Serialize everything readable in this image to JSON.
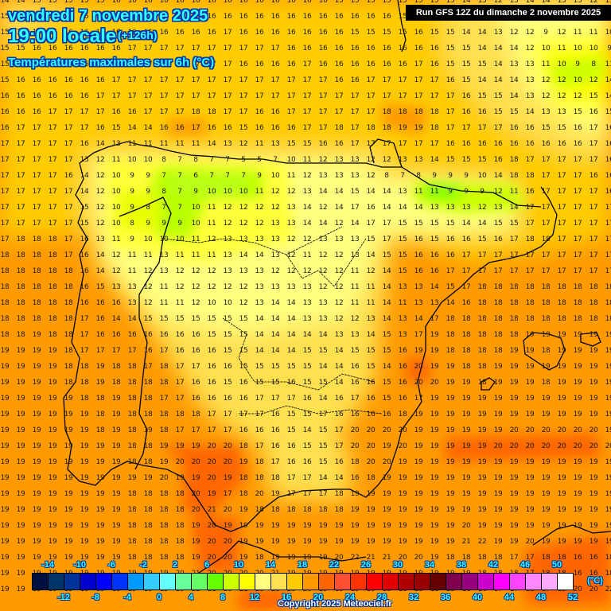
{
  "header": {
    "date": "vendredi 7 novembre 2025",
    "time": "19:00 locale",
    "lead": "(+126h)",
    "variable": "Températures maximales sur 6h (°C)"
  },
  "run_banner": "Run GFS 12Z du dimanche 2 novembre 2025",
  "copyright": "Copyright 2025 Meteociel.fr",
  "legend": {
    "unit": "(°C)",
    "top_labels": [
      "-14",
      "-10",
      "-6",
      "-2",
      "2",
      "6",
      "10",
      "14",
      "18",
      "22",
      "26",
      "30",
      "34",
      "38",
      "42",
      "46",
      "50"
    ],
    "bottom_labels": [
      "-12",
      "-8",
      "-4",
      "0",
      "4",
      "8",
      "12",
      "16",
      "20",
      "24",
      "28",
      "32",
      "36",
      "40",
      "44",
      "48",
      "52"
    ],
    "colors": [
      "#001040",
      "#003366",
      "#003399",
      "#0000cc",
      "#0000ff",
      "#0033ff",
      "#0099ff",
      "#33ccff",
      "#66ffff",
      "#66ff99",
      "#66ff66",
      "#66ff00",
      "#ccff00",
      "#ffff00",
      "#ffff80",
      "#ffe050",
      "#ffcc00",
      "#ff9900",
      "#ff6600",
      "#ff5033",
      "#ff3300",
      "#ff0000",
      "#e00000",
      "#b00000",
      "#990000",
      "#660000",
      "#800050",
      "#990080",
      "#cc00cc",
      "#ff00ff",
      "#ff44ff",
      "#ff88ff",
      "#ffaaff",
      "#ffffff"
    ]
  },
  "grid_values": [
    [
      14,
      14,
      15,
      15,
      15,
      15,
      15,
      16,
      16,
      16,
      16,
      16,
      16,
      16,
      16,
      16,
      16,
      16,
      16,
      16,
      16,
      15,
      15,
      15,
      15,
      15,
      15,
      15,
      15,
      14,
      13,
      12,
      13,
      14,
      14,
      13,
      13,
      12,
      11
    ],
    [
      15,
      15,
      15,
      15,
      15,
      15,
      16,
      16,
      16,
      16,
      16,
      16,
      16,
      16,
      16,
      16,
      16,
      16,
      16,
      16,
      16,
      16,
      16,
      16,
      16,
      15,
      16,
      15,
      14,
      14,
      12,
      13,
      12,
      12,
      10,
      12,
      12,
      11,
      11
    ],
    [
      15,
      15,
      15,
      15,
      16,
      16,
      16,
      16,
      16,
      16,
      16,
      16,
      16,
      16,
      17,
      16,
      16,
      16,
      16,
      16,
      16,
      16,
      15,
      15,
      15,
      15,
      16,
      15,
      15,
      14,
      14,
      13,
      12,
      12,
      9,
      12,
      11,
      11,
      10
    ],
    [
      15,
      15,
      16,
      16,
      16,
      16,
      16,
      16,
      17,
      17,
      17,
      17,
      17,
      17,
      17,
      17,
      17,
      17,
      16,
      16,
      16,
      16,
      16,
      16,
      16,
      16,
      16,
      16,
      15,
      15,
      14,
      14,
      14,
      12,
      10,
      11,
      10,
      10,
      9
    ],
    [
      15,
      16,
      16,
      16,
      16,
      16,
      16,
      16,
      16,
      17,
      17,
      17,
      17,
      17,
      17,
      16,
      16,
      16,
      16,
      17,
      16,
      16,
      16,
      16,
      16,
      16,
      17,
      16,
      15,
      15,
      15,
      14,
      13,
      13,
      11,
      10,
      9,
      8,
      11
    ],
    [
      15,
      16,
      16,
      16,
      16,
      16,
      16,
      17,
      17,
      17,
      17,
      17,
      17,
      17,
      17,
      17,
      17,
      17,
      17,
      17,
      17,
      16,
      16,
      17,
      17,
      17,
      17,
      17,
      16,
      15,
      14,
      14,
      14,
      13,
      12,
      12,
      10,
      12,
      14
    ],
    [
      16,
      16,
      16,
      16,
      16,
      16,
      17,
      17,
      17,
      17,
      17,
      17,
      17,
      17,
      17,
      17,
      17,
      17,
      17,
      17,
      17,
      17,
      17,
      17,
      17,
      17,
      17,
      17,
      17,
      16,
      15,
      15,
      14,
      13,
      12,
      12,
      12,
      15,
      14
    ],
    [
      16,
      16,
      16,
      17,
      17,
      17,
      17,
      16,
      16,
      17,
      17,
      17,
      18,
      18,
      17,
      17,
      16,
      16,
      17,
      17,
      17,
      17,
      17,
      17,
      18,
      18,
      18,
      18,
      17,
      16,
      16,
      15,
      15,
      14,
      13,
      13,
      15,
      16,
      15
    ],
    [
      16,
      17,
      17,
      17,
      17,
      17,
      16,
      15,
      14,
      14,
      16,
      16,
      17,
      16,
      16,
      15,
      16,
      16,
      16,
      17,
      17,
      18,
      17,
      18,
      18,
      19,
      19,
      18,
      17,
      17,
      17,
      17,
      16,
      16,
      15,
      15,
      16,
      17,
      16
    ],
    [
      17,
      17,
      17,
      17,
      17,
      16,
      14,
      13,
      11,
      11,
      11,
      11,
      11,
      14,
      13,
      12,
      11,
      13,
      15,
      15,
      16,
      16,
      17,
      17,
      17,
      17,
      17,
      17,
      16,
      16,
      16,
      16,
      16,
      16,
      16,
      16,
      16,
      17,
      16
    ],
    [
      17,
      17,
      17,
      17,
      17,
      13,
      12,
      11,
      10,
      10,
      8,
      7,
      8,
      7,
      7,
      5,
      5,
      7,
      10,
      11,
      12,
      13,
      13,
      12,
      12,
      13,
      13,
      14,
      15,
      15,
      15,
      16,
      18,
      17,
      17,
      17,
      17,
      17,
      16
    ],
    [
      17,
      17,
      17,
      17,
      16,
      14,
      12,
      10,
      9,
      9,
      7,
      7,
      6,
      7,
      7,
      7,
      9,
      10,
      11,
      12,
      13,
      13,
      13,
      12,
      8,
      7,
      8,
      9,
      9,
      9,
      10,
      14,
      18,
      18,
      17,
      17,
      17,
      16,
      16
    ],
    [
      17,
      17,
      17,
      17,
      17,
      14,
      12,
      10,
      9,
      9,
      8,
      7,
      9,
      10,
      10,
      10,
      11,
      12,
      12,
      13,
      14,
      14,
      15,
      14,
      14,
      13,
      11,
      11,
      9,
      9,
      9,
      12,
      11,
      16,
      17,
      17,
      17,
      17,
      16
    ],
    [
      17,
      17,
      17,
      17,
      17,
      15,
      12,
      10,
      9,
      8,
      7,
      7,
      10,
      11,
      12,
      12,
      12,
      12,
      13,
      14,
      12,
      14,
      17,
      16,
      14,
      14,
      14,
      13,
      13,
      13,
      12,
      13,
      14,
      17,
      17,
      17,
      17,
      17,
      17
    ],
    [
      17,
      17,
      17,
      17,
      17,
      15,
      12,
      10,
      8,
      9,
      9,
      9,
      10,
      11,
      12,
      12,
      12,
      13,
      13,
      14,
      14,
      12,
      14,
      17,
      17,
      15,
      15,
      15,
      15,
      14,
      14,
      15,
      15,
      17,
      17,
      17,
      17,
      17,
      17
    ],
    [
      17,
      18,
      18,
      18,
      17,
      16,
      13,
      11,
      9,
      10,
      10,
      10,
      11,
      12,
      13,
      13,
      13,
      13,
      12,
      12,
      13,
      13,
      13,
      15,
      17,
      15,
      16,
      15,
      16,
      16,
      15,
      16,
      17,
      18,
      18,
      17,
      17,
      17,
      17
    ],
    [
      18,
      18,
      18,
      18,
      17,
      16,
      14,
      12,
      11,
      11,
      13,
      11,
      11,
      11,
      13,
      14,
      14,
      13,
      12,
      11,
      12,
      12,
      13,
      14,
      15,
      15,
      16,
      16,
      16,
      17,
      17,
      17,
      17,
      17,
      17,
      17,
      17,
      17,
      17
    ],
    [
      18,
      18,
      18,
      18,
      18,
      16,
      14,
      12,
      11,
      12,
      13,
      12,
      12,
      12,
      13,
      13,
      13,
      12,
      12,
      12,
      12,
      12,
      11,
      12,
      14,
      15,
      16,
      16,
      17,
      17,
      17,
      17,
      17,
      17,
      17,
      17,
      17,
      17,
      17
    ],
    [
      18,
      18,
      18,
      18,
      18,
      16,
      15,
      13,
      13,
      12,
      11,
      12,
      12,
      12,
      12,
      12,
      13,
      13,
      13,
      13,
      12,
      12,
      11,
      11,
      14,
      13,
      13,
      14,
      15,
      17,
      18,
      18,
      18,
      18,
      18,
      18,
      18,
      18,
      18
    ],
    [
      18,
      18,
      18,
      18,
      18,
      16,
      16,
      16,
      13,
      12,
      11,
      11,
      12,
      10,
      10,
      12,
      13,
      14,
      14,
      13,
      13,
      12,
      11,
      11,
      14,
      11,
      13,
      13,
      14,
      16,
      18,
      18,
      18,
      18,
      18,
      18,
      18,
      18,
      18
    ],
    [
      18,
      18,
      18,
      18,
      18,
      17,
      16,
      14,
      14,
      15,
      15,
      15,
      15,
      15,
      15,
      15,
      14,
      14,
      14,
      13,
      13,
      12,
      12,
      13,
      14,
      13,
      14,
      17,
      18,
      18,
      18,
      18,
      18,
      18,
      18,
      18,
      18,
      18,
      18
    ],
    [
      18,
      18,
      19,
      18,
      18,
      17,
      16,
      16,
      16,
      16,
      16,
      16,
      16,
      15,
      15,
      15,
      14,
      14,
      14,
      14,
      14,
      13,
      13,
      14,
      15,
      13,
      17,
      19,
      18,
      18,
      18,
      18,
      18,
      19,
      19,
      19,
      19,
      19,
      19
    ],
    [
      19,
      19,
      19,
      19,
      18,
      17,
      17,
      17,
      17,
      16,
      17,
      16,
      16,
      16,
      15,
      15,
      14,
      14,
      14,
      15,
      15,
      14,
      15,
      15,
      15,
      16,
      19,
      19,
      18,
      18,
      18,
      18,
      19,
      19,
      18,
      19,
      19,
      19,
      19
    ],
    [
      19,
      19,
      19,
      19,
      18,
      18,
      19,
      18,
      18,
      17,
      18,
      17,
      17,
      16,
      16,
      15,
      15,
      15,
      15,
      15,
      14,
      14,
      16,
      15,
      14,
      16,
      20,
      19,
      19,
      18,
      18,
      19,
      19,
      19,
      19,
      19,
      19,
      19,
      19
    ],
    [
      19,
      19,
      19,
      19,
      18,
      18,
      19,
      18,
      18,
      18,
      18,
      17,
      16,
      16,
      15,
      16,
      15,
      15,
      16,
      15,
      15,
      14,
      16,
      16,
      15,
      16,
      20,
      20,
      19,
      19,
      18,
      19,
      19,
      19,
      18,
      19,
      19,
      19,
      19
    ],
    [
      19,
      19,
      19,
      19,
      19,
      18,
      18,
      19,
      18,
      18,
      17,
      17,
      16,
      16,
      16,
      16,
      17,
      17,
      17,
      16,
      14,
      16,
      17,
      16,
      15,
      16,
      17,
      19,
      19,
      19,
      19,
      19,
      19,
      19,
      19,
      19,
      19,
      19,
      19
    ],
    [
      19,
      19,
      19,
      19,
      19,
      19,
      18,
      19,
      18,
      18,
      18,
      18,
      18,
      17,
      17,
      17,
      17,
      16,
      15,
      15,
      17,
      16,
      16,
      16,
      16,
      18,
      19,
      19,
      19,
      19,
      19,
      19,
      19,
      19,
      19,
      19,
      19,
      19,
      19
    ],
    [
      19,
      19,
      19,
      19,
      19,
      19,
      18,
      19,
      18,
      19,
      18,
      17,
      17,
      17,
      17,
      16,
      16,
      16,
      15,
      14,
      15,
      17,
      20,
      20,
      20,
      20,
      19,
      19,
      19,
      19,
      19,
      19,
      20,
      20,
      20,
      20,
      20,
      20,
      19
    ],
    [
      19,
      19,
      19,
      19,
      19,
      19,
      19,
      19,
      18,
      18,
      19,
      19,
      19,
      20,
      20,
      18,
      17,
      16,
      16,
      15,
      15,
      17,
      20,
      20,
      19,
      20,
      19,
      19,
      19,
      19,
      19,
      20,
      20,
      20,
      20,
      20,
      20,
      20,
      20
    ],
    [
      19,
      19,
      19,
      19,
      19,
      19,
      19,
      19,
      18,
      18,
      19,
      20,
      20,
      20,
      20,
      19,
      18,
      17,
      16,
      16,
      15,
      16,
      18,
      20,
      20,
      19,
      19,
      19,
      19,
      19,
      19,
      19,
      19,
      19,
      19,
      19,
      19,
      19,
      19
    ],
    [
      19,
      19,
      19,
      19,
      19,
      19,
      19,
      19,
      19,
      19,
      20,
      19,
      19,
      20,
      19,
      18,
      18,
      18,
      17,
      17,
      14,
      14,
      16,
      18,
      19,
      19,
      19,
      19,
      19,
      19,
      19,
      19,
      19,
      19,
      19,
      19,
      19,
      19,
      19
    ],
    [
      19,
      19,
      19,
      19,
      19,
      19,
      19,
      19,
      18,
      18,
      18,
      18,
      20,
      19,
      17,
      18,
      20,
      19,
      17,
      17,
      17,
      18,
      19,
      19,
      19,
      19,
      19,
      19,
      19,
      19,
      19,
      19,
      19,
      19,
      19,
      19,
      19,
      19,
      19
    ],
    [
      19,
      19,
      19,
      19,
      19,
      19,
      19,
      19,
      18,
      18,
      18,
      18,
      20,
      21,
      20,
      19,
      18,
      18,
      18,
      18,
      18,
      18,
      19,
      19,
      19,
      19,
      19,
      19,
      19,
      19,
      19,
      19,
      19,
      19,
      19,
      19,
      19,
      19,
      19
    ],
    [
      19,
      19,
      19,
      19,
      19,
      19,
      19,
      19,
      18,
      18,
      18,
      18,
      19,
      20,
      19,
      19,
      19,
      19,
      19,
      19,
      19,
      19,
      19,
      19,
      19,
      19,
      19,
      19,
      19,
      20,
      19,
      19,
      19,
      19,
      19,
      19,
      19,
      19,
      19
    ],
    [
      19,
      19,
      19,
      19,
      19,
      19,
      19,
      19,
      18,
      18,
      18,
      18,
      19,
      20,
      20,
      19,
      19,
      19,
      19,
      19,
      19,
      19,
      19,
      19,
      19,
      19,
      19,
      19,
      19,
      21,
      22,
      19,
      19,
      20,
      19,
      19,
      19,
      19,
      19
    ],
    [
      19,
      19,
      19,
      19,
      19,
      19,
      19,
      19,
      18,
      18,
      18,
      18,
      19,
      20,
      20,
      19,
      18,
      19,
      19,
      19,
      19,
      20,
      22,
      21,
      21,
      20,
      20,
      19,
      18,
      18,
      18,
      18,
      17,
      17,
      18,
      18,
      16,
      16,
      18
    ],
    [
      19,
      19,
      19,
      19,
      19,
      19,
      19,
      19,
      19,
      19,
      19,
      20,
      21,
      20,
      20,
      20,
      20,
      21,
      19,
      19,
      19,
      19,
      19,
      19,
      19,
      19,
      19,
      19,
      19,
      19,
      18,
      18,
      18,
      17,
      18,
      18,
      16,
      16,
      18
    ],
    [
      19,
      19,
      19,
      19,
      19,
      19,
      19,
      19,
      19,
      19,
      19,
      19,
      21,
      21,
      20,
      21,
      20,
      20,
      20,
      20,
      19,
      19,
      19,
      19,
      18,
      18,
      18,
      18,
      18,
      16,
      16,
      17,
      17,
      18,
      17,
      19,
      20,
      20,
      22
    ]
  ]
}
